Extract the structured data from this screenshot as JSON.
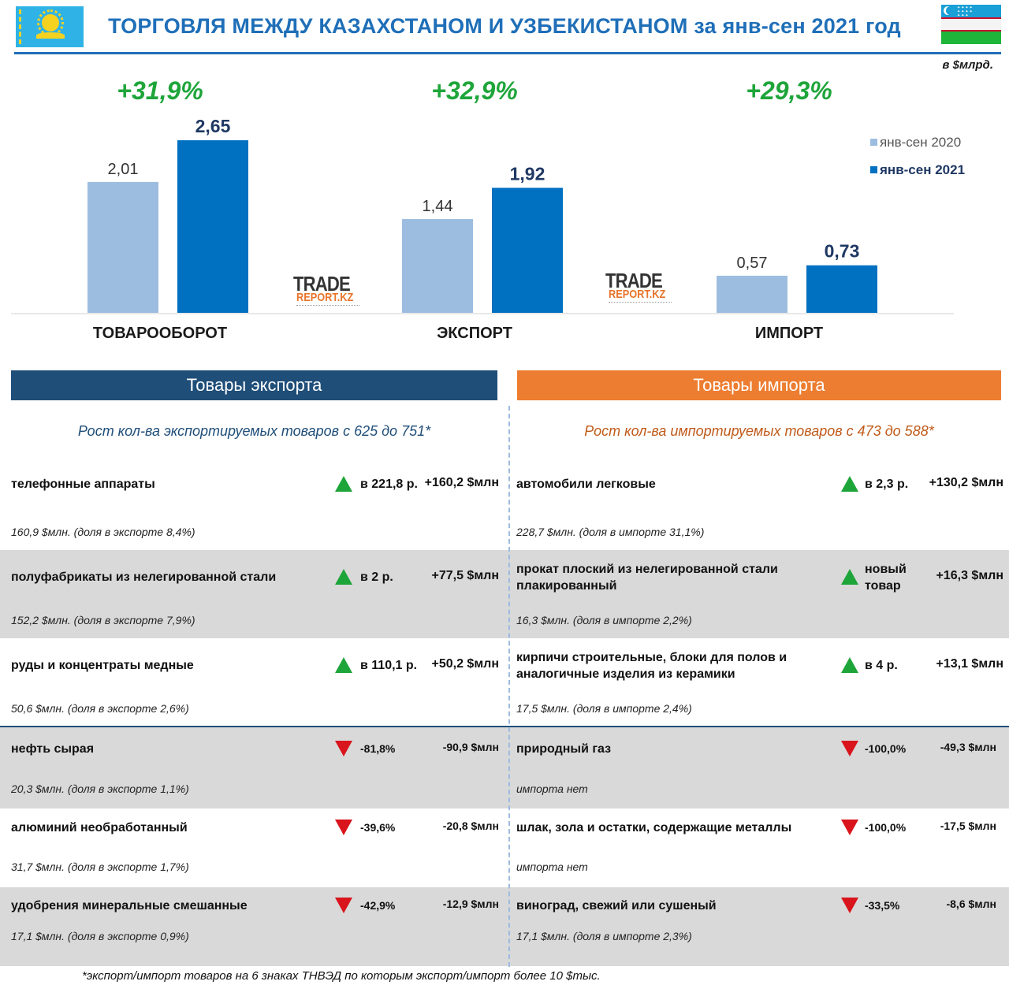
{
  "header": {
    "title": "ТОРГОВЛЯ МЕЖДУ КАЗАХСТАНОМ И УЗБЕКИСТАНОМ за янв-сен 2021 год",
    "unit_note": "в $млрд."
  },
  "watermark": {
    "line1": "TRADE",
    "line2": "REPORT.KZ"
  },
  "colors": {
    "prev": "#9dbde0",
    "curr": "#0070c0",
    "growth": "#1ea53a",
    "export_head": "#1f4e79",
    "import_head": "#ed7d31"
  },
  "chart_data": {
    "type": "bar",
    "categories": [
      "ТОВАРООБОРОТ",
      "ЭКСПОРТ",
      "ИМПОРТ"
    ],
    "series": [
      {
        "name": "янв-сен 2020",
        "values": [
          2.01,
          1.44,
          0.57
        ],
        "labels": [
          "2,01",
          "1,44",
          "0,57"
        ]
      },
      {
        "name": "янв-сен 2021",
        "values": [
          2.65,
          1.92,
          0.73
        ],
        "labels": [
          "2,65",
          "1,92",
          "0,73"
        ]
      }
    ],
    "growth_labels": [
      "+31,9%",
      "+32,9%",
      "+29,3%"
    ],
    "title": "",
    "xlabel": "",
    "ylabel": "",
    "ylim": [
      0,
      2.65
    ],
    "legend_position": "right",
    "grid": false
  },
  "export": {
    "heading": "Товары экспорта",
    "subtitle": "Рост кол-ва экспортируемых товаров с 625 до 751*",
    "items": [
      {
        "name": "телефонные аппараты",
        "sub": "160,9 $млн. (доля в экспорте 8,4%)",
        "ratio": "в 221,8 р.",
        "delta": "+160,2 $млн",
        "trend": "up"
      },
      {
        "name": "полуфабрикаты из нелегированной стали",
        "sub": "152,2 $млн. (доля в экспорте 7,9%)",
        "ratio": "в 2 р.",
        "delta": "+77,5 $млн",
        "trend": "up"
      },
      {
        "name": "руды и концентраты медные",
        "sub": "50,6 $млн. (доля в экспорте 2,6%)",
        "ratio": "в 110,1 р.",
        "delta": "+50,2 $млн",
        "trend": "up"
      },
      {
        "name": "нефть сырая",
        "sub": "20,3 $млн. (доля в экспорте 1,1%)",
        "ratio": "-81,8%",
        "delta": "-90,9 $млн",
        "trend": "down"
      },
      {
        "name": "алюминий необработанный",
        "sub": "31,7 $млн. (доля в экспорте 1,7%)",
        "ratio": "-39,6%",
        "delta": "-20,8 $млн",
        "trend": "down"
      },
      {
        "name": "удобрения минеральные смешанные",
        "sub": "17,1 $млн. (доля в экспорте 0,9%)",
        "ratio": "-42,9%",
        "delta": "-12,9 $млн",
        "trend": "down"
      }
    ]
  },
  "import": {
    "heading": "Товары импорта",
    "subtitle": "Рост кол-ва импортируемых товаров с 473 до 588*",
    "items": [
      {
        "name": "автомобили легковые",
        "sub": "228,7 $млн. (доля в импорте 31,1%)",
        "ratio": "в 2,3 р.",
        "delta": "+130,2 $млн",
        "trend": "up"
      },
      {
        "name": "прокат плоский из нелегированной стали плакированный",
        "sub": "16,3 $млн. (доля в импорте 2,2%)",
        "ratio": "новый товар",
        "delta": "+16,3 $млн",
        "trend": "up"
      },
      {
        "name": "кирпичи строительные, блоки для полов и аналогичные изделия из керамики",
        "sub": "17,5 $млн. (доля в импорте 2,4%)",
        "ratio": "в 4 р.",
        "delta": "+13,1 $млн",
        "trend": "up"
      },
      {
        "name": "природный газ",
        "sub": "импорта нет",
        "ratio": "-100,0%",
        "delta": "-49,3 $млн",
        "trend": "down"
      },
      {
        "name": "шлак, зола и остатки, содержащие металлы",
        "sub": "импорта нет",
        "ratio": "-100,0%",
        "delta": "-17,5 $млн",
        "trend": "down"
      },
      {
        "name": "виноград, свежий или сушеный",
        "sub": "17,1 $млн. (доля в импорте 2,3%)",
        "ratio": "-33,5%",
        "delta": "-8,6 $млн",
        "trend": "down"
      }
    ]
  },
  "footnote": "*экспорт/импорт товаров на 6 знаках ТНВЭД по которым экспорт/импорт более 10 $тыс."
}
